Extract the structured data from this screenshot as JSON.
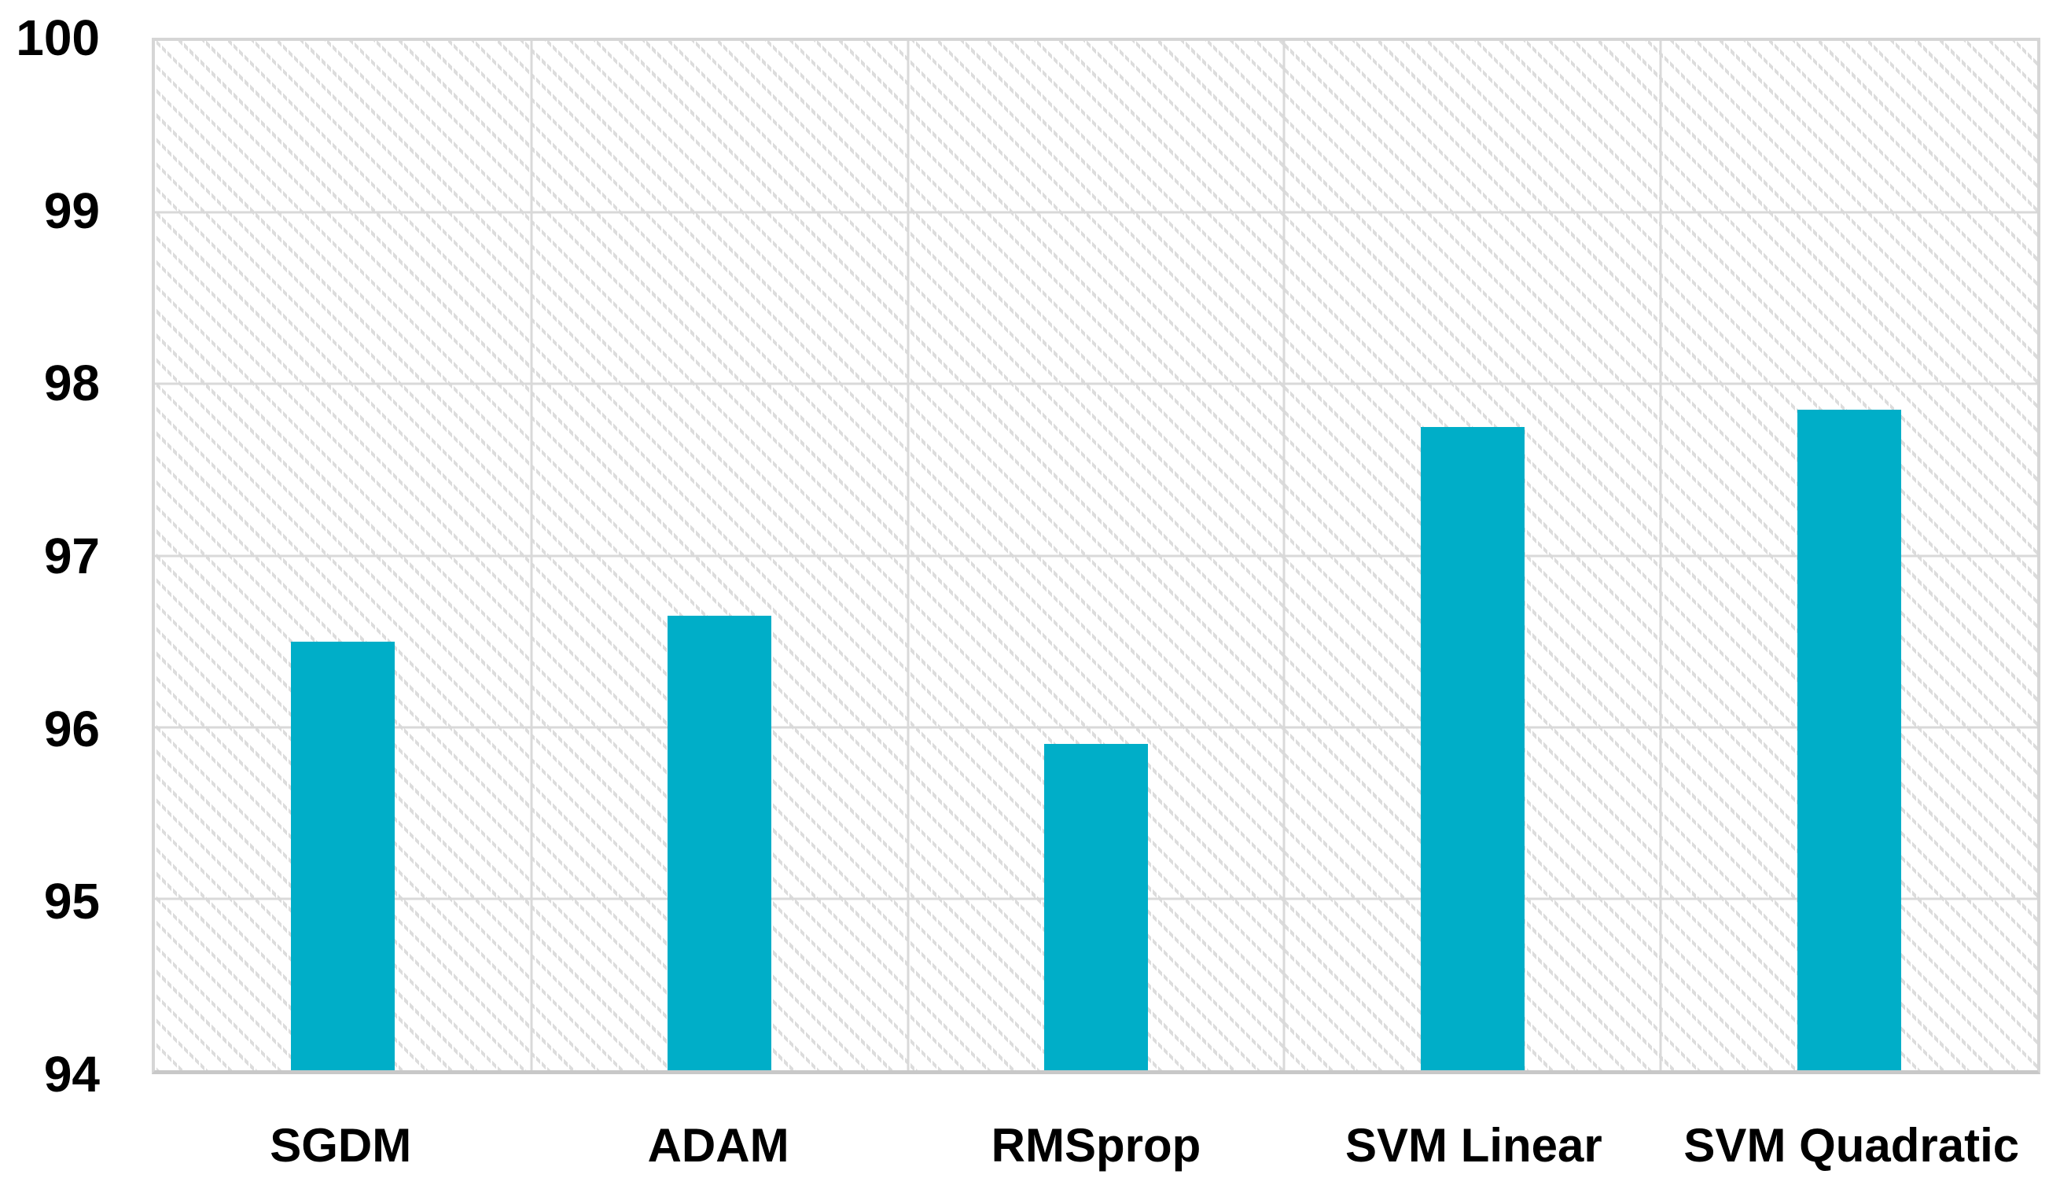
{
  "chart_data": {
    "type": "bar",
    "title": "",
    "xlabel": "",
    "ylabel": "",
    "categories": [
      "SGDM",
      "ADAM",
      "RMSprop",
      "SVM Linear",
      "SVM Quadratic"
    ],
    "values": [
      96.5,
      96.65,
      95.9,
      97.75,
      97.85
    ],
    "ylim": [
      94,
      100
    ],
    "yticks": [
      94,
      95,
      96,
      97,
      98,
      99,
      100
    ],
    "grid": true,
    "legend_position": "none",
    "bar_color": "#00AEC8",
    "gridline_color": "#D9D9D9",
    "hatch_color": "#DCDCDC",
    "plot_border_color": "#D6D6D6",
    "axis_line_color": "#C8C8C8",
    "tick_text_color": "#000000"
  }
}
